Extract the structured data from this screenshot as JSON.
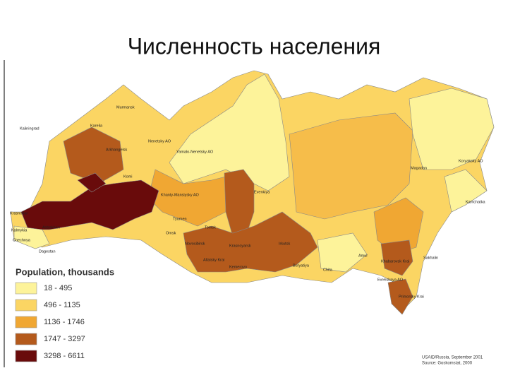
{
  "title": "Численность населения",
  "legend": {
    "title": "Population, thousands",
    "items": [
      {
        "label": "18 - 495",
        "color": "#fdf39a"
      },
      {
        "label": "496 - 1135",
        "color": "#fbd563"
      },
      {
        "label": "1136 - 1746",
        "color": "#f0a733"
      },
      {
        "label": "1747 - 3297",
        "color": "#b45a1c"
      },
      {
        "label": "3298 - 6611",
        "color": "#690b0b"
      }
    ]
  },
  "map_labels": [
    "Kaliningrad",
    "Murmansk",
    "Karelia",
    "Arkhangelsk",
    "Komi",
    "Nenetsky AO",
    "Yamalo-Nenetsky AO",
    "Khanty-Mansiysky AO",
    "Tyumen",
    "Tomsk",
    "Novosibirsk",
    "Omsk",
    "Altaisky Krai",
    "Krasnoyarsk",
    "Irkutsk",
    "Buryatiya",
    "Chita",
    "Evenkiya",
    "Amur",
    "Khabarovsk Krai",
    "Primorsky Krai",
    "Magadan",
    "Koryaksky AO",
    "Kamchatka",
    "Evreiskaya AO",
    "Kemerovo",
    "Krasnodar",
    "Kalmykia",
    "Astrakhan",
    "Chechnya",
    "Dagestan",
    "Sakhalin"
  ],
  "credits": [
    "USAID/Russia, September 2001",
    "Source: Goskomstat, 2000"
  ]
}
